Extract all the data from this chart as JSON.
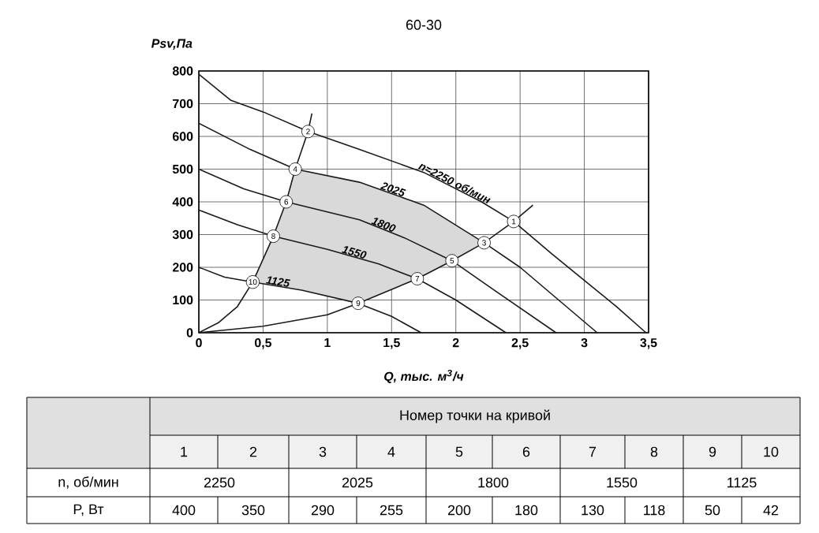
{
  "chart_data": {
    "type": "line",
    "title": "60-30",
    "xlabel": "Q, тыс. м$^{3}$/ч",
    "ylabel": "Psv,Па",
    "xlim": [
      0,
      3.5
    ],
    "ylim": [
      0,
      800
    ],
    "xticks": [
      0,
      {
        "value": 0.5,
        "label": "0,5"
      },
      1,
      {
        "value": 1.5,
        "label": "1,5"
      },
      2,
      {
        "value": 2.5,
        "label": "2,5"
      },
      3,
      {
        "value": 3.5,
        "label": "3,5"
      }
    ],
    "yticks": [
      0,
      100,
      200,
      300,
      400,
      500,
      600,
      700,
      800
    ],
    "grid": true,
    "series": [
      {
        "type": "area",
        "color": "#d9d9d9",
        "x": [
          0.75,
          1.25,
          1.75,
          2.22,
          1.97,
          1.7,
          1.24,
          0.8,
          0.42,
          0.58,
          0.68
        ],
        "values": [
          500,
          460,
          390,
          275,
          220,
          165,
          90,
          130,
          155,
          295,
          400
        ]
      },
      {
        "name": "n=2250 об/мин",
        "color": "#1a1a1a",
        "x": [
          0,
          0.25,
          0.5,
          0.85,
          1.25,
          1.75,
          2.2,
          2.45,
          2.75,
          3.0,
          3.25,
          3.48
        ],
        "values": [
          790,
          710,
          675,
          615,
          560,
          490,
          400,
          340,
          240,
          160,
          80,
          0
        ]
      },
      {
        "name": "2025",
        "color": "#1a1a1a",
        "x": [
          0,
          0.4,
          0.75,
          1.25,
          1.75,
          2.22,
          2.5,
          2.8,
          3.1
        ],
        "values": [
          640,
          560,
          500,
          460,
          390,
          275,
          200,
          100,
          0
        ]
      },
      {
        "name": "1800",
        "color": "#1a1a1a",
        "x": [
          0,
          0.35,
          0.68,
          1.25,
          1.6,
          1.97,
          2.3,
          2.78
        ],
        "values": [
          500,
          440,
          400,
          345,
          290,
          220,
          130,
          0
        ]
      },
      {
        "name": "1550",
        "color": "#1a1a1a",
        "x": [
          0,
          0.3,
          0.58,
          1.0,
          1.4,
          1.7,
          2.0,
          2.39
        ],
        "values": [
          375,
          330,
          295,
          255,
          210,
          165,
          100,
          0
        ]
      },
      {
        "name": "1125",
        "color": "#1a1a1a",
        "x": [
          0,
          0.2,
          0.42,
          0.8,
          1.24,
          1.5,
          1.73
        ],
        "values": [
          200,
          170,
          155,
          130,
          90,
          50,
          0
        ]
      },
      {
        "color": "#1a1a1a",
        "x": [
          0,
          0.15,
          0.3,
          0.42,
          0.58,
          0.68,
          0.75,
          0.85,
          0.88
        ],
        "values": [
          0,
          30,
          80,
          155,
          295,
          400,
          500,
          615,
          670
        ]
      },
      {
        "color": "#1a1a1a",
        "x": [
          0,
          0.5,
          1.0,
          1.24,
          1.7,
          1.97,
          2.22,
          2.45,
          2.6
        ],
        "values": [
          0,
          20,
          55,
          90,
          165,
          220,
          275,
          340,
          390
        ]
      }
    ],
    "annotations": [
      {
        "text": "1",
        "x": 2.45,
        "y": 340
      },
      {
        "text": "2",
        "x": 0.85,
        "y": 615
      },
      {
        "text": "3",
        "x": 2.22,
        "y": 275
      },
      {
        "text": "4",
        "x": 0.75,
        "y": 500
      },
      {
        "text": "5",
        "x": 1.97,
        "y": 220
      },
      {
        "text": "6",
        "x": 0.68,
        "y": 400
      },
      {
        "text": "7",
        "x": 1.7,
        "y": 165
      },
      {
        "text": "8",
        "x": 0.58,
        "y": 295
      },
      {
        "text": "9",
        "x": 1.24,
        "y": 90
      },
      {
        "text": "10",
        "x": 0.42,
        "y": 155
      },
      "Номер точки на кривой",
      "1",
      "2",
      "3",
      "4",
      "5",
      "6",
      "7",
      "8",
      "9",
      "10",
      "n, об/мин",
      "2250",
      "2025",
      "1800",
      "1550",
      "1125",
      "P, Вт",
      "400",
      "350",
      "290",
      "255",
      "200",
      "180",
      "130",
      "118",
      "50",
      "42"
    ]
  }
}
